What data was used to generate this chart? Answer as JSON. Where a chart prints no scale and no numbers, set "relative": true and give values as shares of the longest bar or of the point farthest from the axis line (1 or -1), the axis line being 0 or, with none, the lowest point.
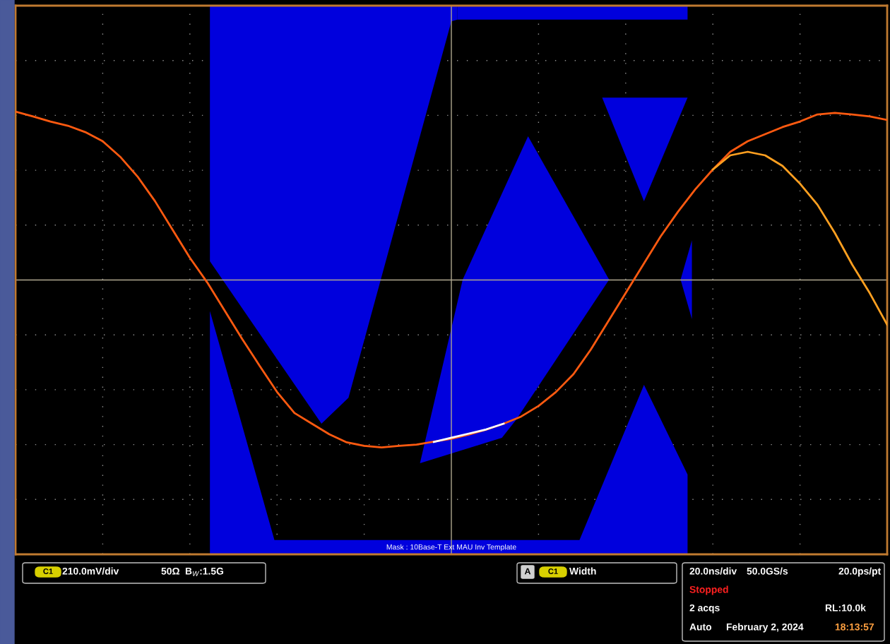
{
  "chart_data": {
    "type": "line",
    "relative": true,
    "grid": true,
    "legend": false,
    "categories": [
      null,
      null,
      null,
      null,
      null,
      null,
      null,
      null,
      null,
      null,
      null,
      null,
      null,
      null,
      null,
      null,
      null,
      null,
      null,
      null,
      null,
      null,
      null,
      null,
      null,
      null,
      null,
      null,
      null,
      null,
      null,
      null,
      null,
      null,
      null,
      null,
      null,
      null,
      null,
      null,
      null,
      null,
      null,
      null,
      null,
      null,
      null,
      null,
      null,
      null,
      null
    ],
    "series": [
      {
        "color": "#ff5a10",
        "values": [
          1,
          0.971,
          0.941,
          0.916,
          0.878,
          0.824,
          0.732,
          0.614,
          0.468,
          0.3,
          0.132,
          -0.015,
          -0.182,
          -0.35,
          -0.509,
          -0.665,
          -0.79,
          -0.853,
          -0.916,
          -0.964,
          -0.985,
          -0.994,
          -0.985,
          -0.977,
          -0.96,
          -0.943,
          -0.918,
          -0.889,
          -0.853,
          -0.811,
          -0.748,
          -0.665,
          -0.56,
          -0.413,
          -0.245,
          -0.078,
          0.09,
          0.258,
          0.405,
          0.539,
          0.656,
          0.761,
          0.824,
          0.866,
          0.908,
          0.941,
          0.983,
          0.992,
          0.983,
          0.971,
          0.95
        ]
      },
      {
        "color": "#ffa020",
        "values": [
          null,
          null,
          null,
          null,
          null,
          null,
          null,
          null,
          null,
          null,
          null,
          null,
          null,
          null,
          null,
          null,
          null,
          null,
          null,
          null,
          null,
          null,
          null,
          null,
          null,
          null,
          null,
          null,
          null,
          null,
          null,
          null,
          null,
          null,
          null,
          null,
          null,
          null,
          null,
          null,
          0.656,
          0.74,
          0.761,
          0.74,
          0.677,
          0.572,
          0.447,
          0.279,
          0.09,
          -0.078,
          -0.266
        ]
      },
      {
        "color": "#ffffff",
        "values": [
          null,
          null,
          null,
          null,
          null,
          null,
          null,
          null,
          null,
          null,
          null,
          null,
          null,
          null,
          null,
          null,
          null,
          null,
          null,
          null,
          null,
          null,
          null,
          null,
          -0.962,
          -0.937,
          -0.912,
          -0.887,
          -0.853,
          null,
          null,
          null,
          null,
          null,
          null,
          null,
          null,
          null,
          null,
          null,
          null,
          null,
          null,
          null,
          null,
          null,
          null,
          null,
          null,
          null,
          null
        ]
      }
    ],
    "annotations": [
      "Mask : 10Base-T Ext MAU Inv Template",
      "C1",
      "210.0mV/div",
      "50Ω",
      "B$_{W}$:1.5G",
      "A",
      "C1",
      "Width",
      "20.0ns/div",
      "50.0GS/s",
      "20.0ps/pt",
      "Stopped",
      "2 acqs",
      "RL:10.0k",
      "Auto",
      "February 2, 2024",
      "18:13:57"
    ]
  }
}
